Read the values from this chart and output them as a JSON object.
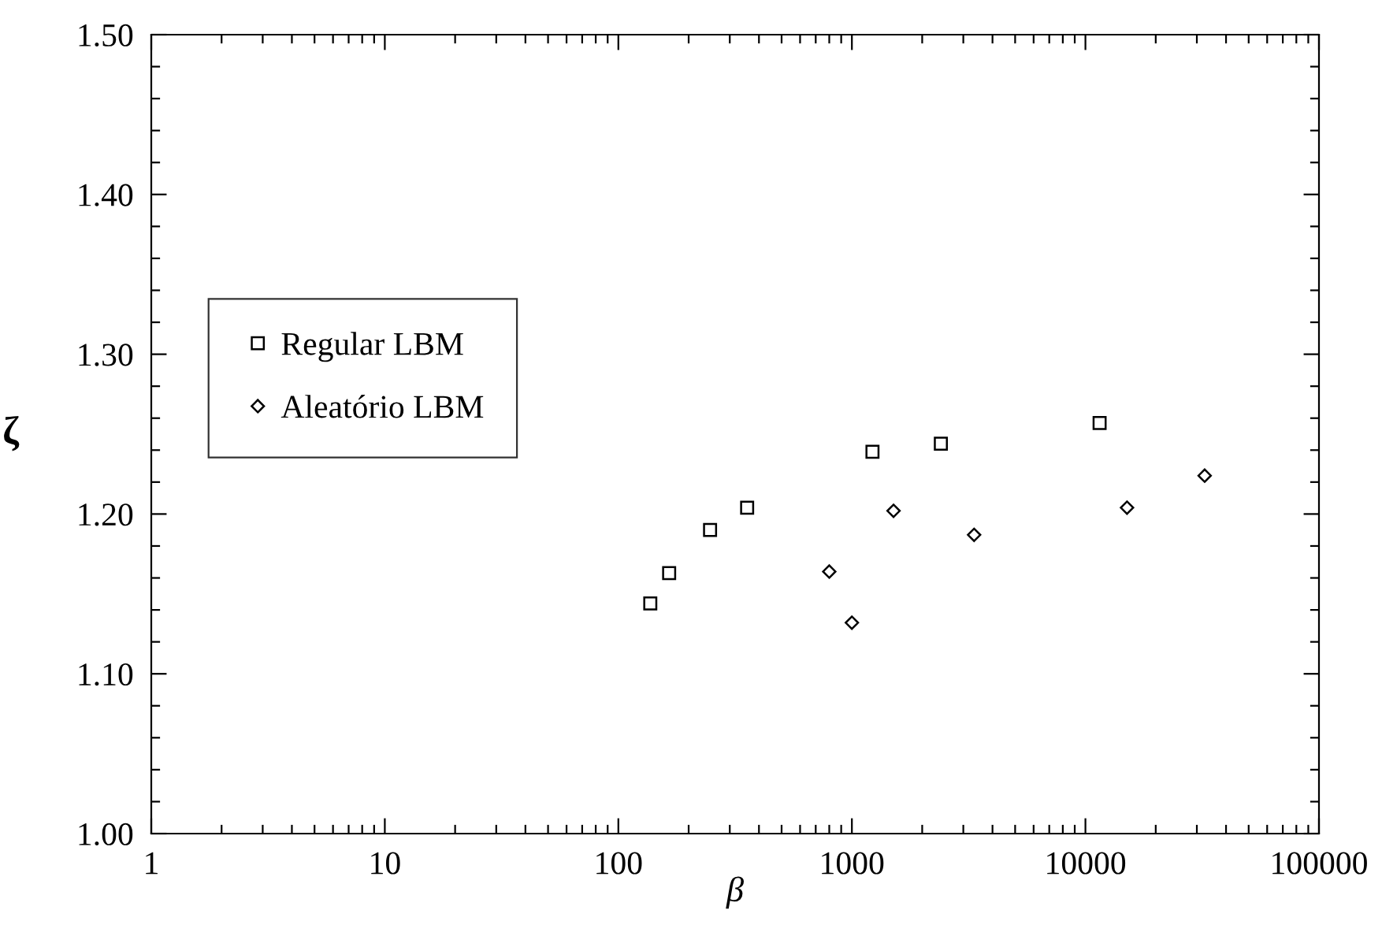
{
  "chart_data": {
    "type": "scatter",
    "xlabel": "β",
    "ylabel": "ζ",
    "log": "x",
    "xlim": [
      1,
      100000
    ],
    "xticks": [
      1,
      10,
      100,
      1000,
      10000,
      100000
    ],
    "ylim": [
      1.0,
      1.5
    ],
    "yticks": [
      {
        "value": 1.0,
        "label": "1.00"
      },
      {
        "value": 1.1,
        "label": "1.10"
      },
      {
        "value": 1.2,
        "label": "1.20"
      },
      {
        "value": 1.3,
        "label": "1.30"
      },
      {
        "value": 1.4,
        "label": "1.40"
      },
      {
        "value": 1.5,
        "label": "1.50"
      }
    ],
    "grid": false,
    "legend": "left",
    "series": [
      {
        "name": "Regular LBM",
        "color": "#000000",
        "marker": "square",
        "x": [
          137,
          165,
          247,
          356,
          1225,
          2404,
          11500
        ],
        "values": [
          1.144,
          1.163,
          1.19,
          1.204,
          1.239,
          1.244,
          1.257
        ]
      },
      {
        "name": "Aleatório LBM",
        "color": "#000000",
        "marker": "diamond",
        "x": [
          800,
          1000,
          1508,
          3337,
          15070,
          32400
        ],
        "values": [
          1.164,
          1.132,
          1.202,
          1.187,
          1.204,
          1.224
        ]
      }
    ]
  }
}
